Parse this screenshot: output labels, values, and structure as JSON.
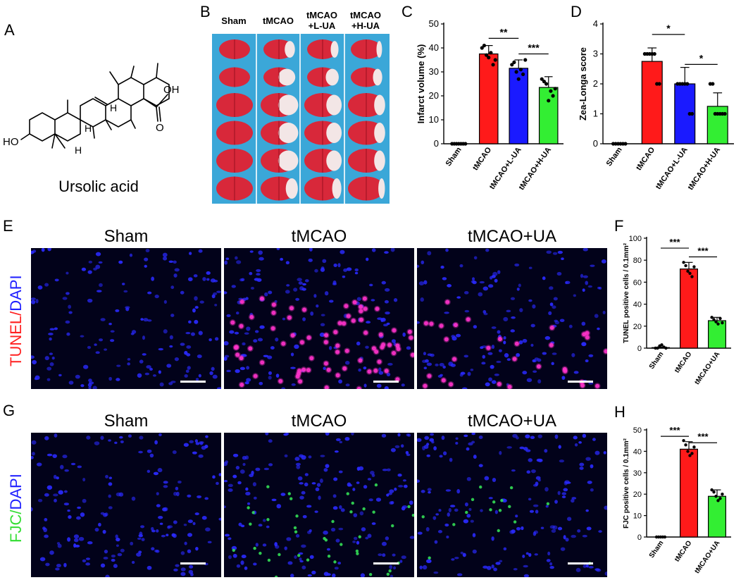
{
  "panels": {
    "A": {
      "letter": "A",
      "caption": "Ursolic acid",
      "atoms": {
        "oh_acid": "OH",
        "o_acid": "O",
        "ho": "HO",
        "h1": "H",
        "h2": "H",
        "h3": "H"
      }
    },
    "B": {
      "letter": "B",
      "headers": [
        "Sham",
        "tMCAO",
        "tMCAO\n+L-UA",
        "tMCAO\n+H-UA"
      ],
      "header_lines": [
        [
          "Sham"
        ],
        [
          "tMCAO"
        ],
        [
          "tMCAO",
          "+L-UA"
        ],
        [
          "tMCAO",
          "+H-UA"
        ]
      ]
    },
    "C": {
      "letter": "C"
    },
    "D": {
      "letter": "D"
    },
    "E": {
      "letter": "E",
      "stain_label_1": "TUNEL",
      "stain_label_sep": "/",
      "stain_label_2": "DAPI",
      "titles": [
        "Sham",
        "tMCAO",
        "tMCAO+UA"
      ]
    },
    "F": {
      "letter": "F"
    },
    "G": {
      "letter": "G",
      "stain_label_1": "FJC",
      "stain_label_sep": "/",
      "stain_label_2": "DAPI",
      "titles": [
        "Sham",
        "tMCAO",
        "tMCAO+UA"
      ]
    },
    "H": {
      "letter": "H"
    }
  },
  "colors": {
    "red": "#ff1a1a",
    "blue": "#1a1aff",
    "green": "#33ee33",
    "black": "#000000",
    "dapi": "#2020ff",
    "tunel": "#ff33cc",
    "fjc": "#33dd55"
  },
  "chart_data": [
    {
      "id": "C",
      "type": "bar",
      "categories": [
        "Sham",
        "tMCAO",
        "tMCAO+L-UA",
        "tMCAO+H-UA"
      ],
      "values": [
        0,
        37.5,
        31.5,
        23.5
      ],
      "errors": [
        0,
        3.5,
        3.5,
        4.5
      ],
      "points": [
        [
          0,
          0,
          0,
          0,
          0,
          0,
          0
        ],
        [
          40,
          41,
          37,
          36,
          38,
          33,
          35
        ],
        [
          33,
          34,
          30,
          27,
          31,
          29,
          35
        ],
        [
          27,
          26,
          25,
          18,
          22,
          20,
          23
        ]
      ],
      "colors": [
        "#000000",
        "#ff1a1a",
        "#1a1aff",
        "#33ee33"
      ],
      "ylabel": "Infarct volume (%)",
      "ylim": [
        0,
        50
      ],
      "yticks": [
        0,
        10,
        20,
        30,
        40,
        50
      ],
      "significance": [
        {
          "from": 1,
          "to": 2,
          "label": "**",
          "y": 44
        },
        {
          "from": 2,
          "to": 3,
          "label": "***",
          "y": 37.5
        }
      ]
    },
    {
      "id": "D",
      "type": "bar",
      "categories": [
        "Sham",
        "tMCAO",
        "tMCAO+L-UA",
        "tMCAO+H-UA"
      ],
      "values": [
        0,
        2.75,
        2.0,
        1.25
      ],
      "errors": [
        0,
        0.45,
        0.55,
        0.45
      ],
      "points": [
        [
          0,
          0,
          0,
          0,
          0,
          0
        ],
        [
          3,
          3,
          3,
          3,
          3,
          2,
          2
        ],
        [
          2,
          2,
          2,
          2,
          2,
          1,
          1
        ],
        [
          2,
          2,
          1,
          1,
          1,
          1,
          1
        ]
      ],
      "colors": [
        "#000000",
        "#ff1a1a",
        "#1a1aff",
        "#33ee33"
      ],
      "ylabel": "Zea-Longa score",
      "ylim": [
        0,
        4
      ],
      "yticks": [
        0,
        1,
        2,
        3,
        4
      ],
      "significance": [
        {
          "from": 1,
          "to": 2,
          "label": "*",
          "y": 3.65
        },
        {
          "from": 2,
          "to": 3,
          "label": "*",
          "y": 2.65
        }
      ]
    },
    {
      "id": "F",
      "type": "bar",
      "categories": [
        "Sham",
        "tMCAO",
        "tMCAO+UA"
      ],
      "values": [
        0.5,
        72,
        25
      ],
      "errors": [
        0.5,
        6,
        3
      ],
      "points": [
        [
          0,
          0,
          2,
          3,
          1,
          0
        ],
        [
          78,
          75,
          70,
          68,
          65,
          74
        ],
        [
          28,
          26,
          24,
          22,
          27,
          23
        ]
      ],
      "colors": [
        "#000000",
        "#ff1a1a",
        "#33ee33"
      ],
      "ylabel": "TUNEL positive cells / 0.1mm²",
      "ylim": [
        0,
        100
      ],
      "yticks": [
        0,
        20,
        40,
        60,
        80,
        100
      ],
      "significance": [
        {
          "from": 0,
          "to": 1,
          "label": "***",
          "y": 91
        },
        {
          "from": 1,
          "to": 2,
          "label": "***",
          "y": 83
        }
      ]
    },
    {
      "id": "H",
      "type": "bar",
      "categories": [
        "Sham",
        "tMCAO",
        "tMCAO+UA"
      ],
      "values": [
        0,
        41,
        19
      ],
      "errors": [
        0,
        3.5,
        3
      ],
      "points": [
        [
          0,
          0,
          0,
          0,
          0
        ],
        [
          45,
          43,
          40,
          38,
          39,
          42
        ],
        [
          22,
          21,
          19,
          17,
          18,
          20
        ]
      ],
      "colors": [
        "#000000",
        "#ff1a1a",
        "#33ee33"
      ],
      "ylabel": "FJC positive cells / 0.1mm²",
      "ylim": [
        0,
        50
      ],
      "yticks": [
        0,
        10,
        20,
        30,
        40,
        50
      ],
      "significance": [
        {
          "from": 0,
          "to": 1,
          "label": "***",
          "y": 47
        },
        {
          "from": 1,
          "to": 2,
          "label": "***",
          "y": 44
        }
      ]
    }
  ]
}
